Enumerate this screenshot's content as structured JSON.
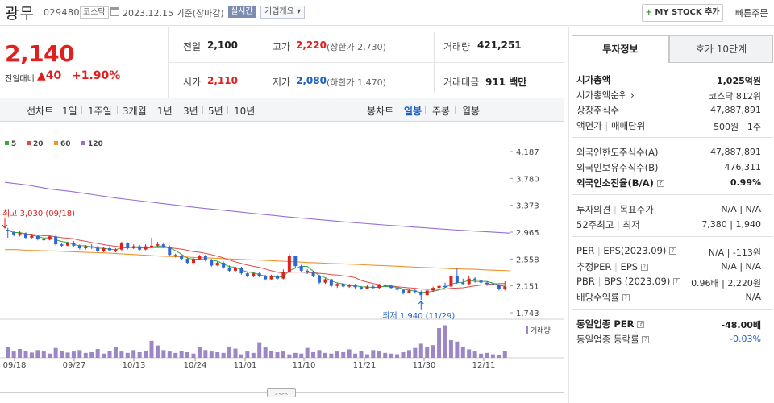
{
  "header": {
    "stock_name": "광무",
    "stock_code": "029480",
    "market": "코스닥",
    "date_info": "2023.12.15 기준(장마감)",
    "realtime_label": "실시간",
    "company_overview_label": "기업개요",
    "mystock_label": "MY STOCK 추가",
    "quick_order_label": "빠른주문"
  },
  "price": {
    "current": "2,140",
    "change_label": "전일대비",
    "change_value": "40",
    "change_pct": "+1.90%"
  },
  "quote": {
    "prev_close_label": "전일",
    "prev_close": "2,100",
    "high_label": "고가",
    "high": "2,220",
    "upper_limit": "(상한가 2,730)",
    "volume_label": "거래량",
    "volume": "421,251",
    "open_label": "시가",
    "open": "2,110",
    "low_label": "저가",
    "low": "2,080",
    "lower_limit": "(하한가 1,470)",
    "value_label": "거래대금",
    "value": "911 백만"
  },
  "period": {
    "line_chart_label": "선차트",
    "line_periods": [
      "1일",
      "1주일",
      "3개월",
      "1년",
      "3년",
      "5년",
      "10년"
    ],
    "candle_label": "봉차트",
    "candle_periods": [
      "일봉",
      "주봉",
      "월봉"
    ],
    "active_candle": "일봉"
  },
  "invest": {
    "tab_info": "투자정보",
    "tab_hoga": "호가 10단계",
    "market_cap_label": "시가총액",
    "market_cap": "1,025억원",
    "cap_rank_label": "시가총액순위",
    "cap_rank": "코스닥 812위",
    "shares_label": "상장주식수",
    "shares": "47,887,891",
    "par_label": "액면가",
    "unit_label": "매매단위",
    "par_unit": "500원 | 1주",
    "foreign_limit_label": "외국인한도주식수(A)",
    "foreign_limit": "47,887,891",
    "foreign_hold_label": "외국인보유주식수(B)",
    "foreign_hold": "476,311",
    "foreign_ratio_label": "외국인소진율(B/A)",
    "foreign_ratio": "0.99%",
    "opinion_label": "투자의견",
    "target_label": "목표주가",
    "opinion_target": "N/A | N/A",
    "w52_label": "52주최고",
    "w52_low_label": "최저",
    "w52": "7,380 | 1,940",
    "per_label": "PER",
    "eps_label": "EPS(2023.09)",
    "per_eps": "N/A | -113원",
    "est_per_label": "추정PER",
    "est_eps_label": "EPS",
    "est_per_eps": "N/A | N/A",
    "pbr_label": "PBR",
    "bps_label": "BPS (2023.09)",
    "pbr_bps": "0.96배 | 2,220원",
    "div_label": "배당수익률",
    "div": "N/A",
    "sector_per_label": "동일업종 PER",
    "sector_per": "-48.00배",
    "sector_rate_label": "동일업종 등락률",
    "sector_rate": "-0.03%"
  },
  "chart_data": {
    "type": "candlestick",
    "legend": [
      {
        "name": "5",
        "color": "#3aa63a"
      },
      {
        "name": "20",
        "color": "#e24a4a"
      },
      {
        "name": "60",
        "color": "#f0922e"
      },
      {
        "name": "120",
        "color": "#9b6fd1"
      }
    ],
    "y_ticks": [
      "4,187",
      "3,780",
      "3,373",
      "2,965",
      "2,558",
      "2,151",
      "1,743"
    ],
    "ylim": [
      1743,
      4187
    ],
    "x_ticks": [
      "09/18",
      "09/27",
      "10/13",
      "10/24",
      "11/01",
      "11/10",
      "11/21",
      "11/30",
      "12/11"
    ],
    "high_annotation": "최고 3,030 (09/18)",
    "low_annotation": "최저 1,940 (11/29)",
    "volume_label": "거래량",
    "candles": [
      [
        3000,
        2990,
        3030,
        2880
      ],
      [
        2960,
        2930,
        2990,
        2900
      ],
      [
        2930,
        2950,
        2980,
        2900
      ],
      [
        2950,
        2880,
        2960,
        2860
      ],
      [
        2880,
        2910,
        2940,
        2870
      ],
      [
        2910,
        2860,
        2920,
        2840
      ],
      [
        2860,
        2850,
        2880,
        2830
      ],
      [
        2850,
        2900,
        2910,
        2840
      ],
      [
        2900,
        2780,
        2920,
        2760
      ],
      [
        2780,
        2760,
        2800,
        2740
      ],
      [
        2760,
        2800,
        2820,
        2750
      ],
      [
        2800,
        2760,
        2830,
        2740
      ],
      [
        2760,
        2720,
        2780,
        2700
      ],
      [
        2720,
        2750,
        2770,
        2700
      ],
      [
        2750,
        2730,
        2780,
        2710
      ],
      [
        2730,
        2680,
        2760,
        2660
      ],
      [
        2680,
        2720,
        2740,
        2660
      ],
      [
        2720,
        2690,
        2750,
        2680
      ],
      [
        2690,
        2700,
        2720,
        2660
      ],
      [
        2700,
        2800,
        2820,
        2680
      ],
      [
        2800,
        2720,
        2810,
        2700
      ],
      [
        2720,
        2750,
        2780,
        2710
      ],
      [
        2750,
        2700,
        2770,
        2680
      ],
      [
        2700,
        2750,
        2780,
        2690
      ],
      [
        2750,
        2760,
        2880,
        2720
      ],
      [
        2760,
        2780,
        2820,
        2730
      ],
      [
        2780,
        2740,
        2810,
        2720
      ],
      [
        2740,
        2620,
        2760,
        2600
      ],
      [
        2620,
        2600,
        2640,
        2580
      ],
      [
        2600,
        2560,
        2620,
        2540
      ],
      [
        2560,
        2500,
        2580,
        2480
      ],
      [
        2500,
        2560,
        2580,
        2470
      ],
      [
        2560,
        2600,
        2620,
        2540
      ],
      [
        2600,
        2540,
        2620,
        2520
      ],
      [
        2540,
        2460,
        2560,
        2440
      ],
      [
        2460,
        2500,
        2520,
        2450
      ],
      [
        2500,
        2430,
        2520,
        2410
      ],
      [
        2430,
        2380,
        2460,
        2360
      ],
      [
        2380,
        2420,
        2440,
        2360
      ],
      [
        2420,
        2340,
        2440,
        2320
      ],
      [
        2340,
        2300,
        2360,
        2280
      ],
      [
        2300,
        2340,
        2360,
        2280
      ],
      [
        2340,
        2300,
        2360,
        2280
      ],
      [
        2300,
        2250,
        2320,
        2230
      ],
      [
        2250,
        2300,
        2320,
        2240
      ],
      [
        2300,
        2260,
        2320,
        2240
      ],
      [
        2260,
        2360,
        2400,
        2250
      ],
      [
        2360,
        2600,
        2640,
        2350
      ],
      [
        2600,
        2450,
        2610,
        2420
      ],
      [
        2450,
        2380,
        2470,
        2360
      ],
      [
        2380,
        2350,
        2400,
        2330
      ],
      [
        2350,
        2300,
        2380,
        2280
      ],
      [
        2300,
        2200,
        2320,
        2180
      ],
      [
        2200,
        2250,
        2270,
        2180
      ],
      [
        2250,
        2150,
        2260,
        2130
      ],
      [
        2150,
        2180,
        2200,
        2120
      ],
      [
        2180,
        2140,
        2200,
        2120
      ],
      [
        2140,
        2160,
        2180,
        2120
      ],
      [
        2160,
        2130,
        2180,
        2110
      ],
      [
        2130,
        2110,
        2150,
        2090
      ],
      [
        2110,
        2140,
        2160,
        2100
      ],
      [
        2140,
        2120,
        2160,
        2100
      ],
      [
        2120,
        2160,
        2180,
        2110
      ],
      [
        2160,
        2150,
        2180,
        2130
      ],
      [
        2150,
        2120,
        2170,
        2100
      ],
      [
        2120,
        2090,
        2140,
        2060
      ],
      [
        2090,
        2050,
        2110,
        2020
      ],
      [
        2050,
        2080,
        2100,
        2040
      ],
      [
        2080,
        2060,
        2100,
        2030
      ],
      [
        2060,
        2010,
        2080,
        1940
      ],
      [
        2010,
        2080,
        2100,
        2000
      ],
      [
        2080,
        2120,
        2140,
        2060
      ],
      [
        2120,
        2150,
        2180,
        2100
      ],
      [
        2150,
        2140,
        2200,
        2120
      ],
      [
        2140,
        2300,
        2320,
        2130
      ],
      [
        2300,
        2200,
        2420,
        2180
      ],
      [
        2200,
        2180,
        2260,
        2160
      ],
      [
        2180,
        2260,
        2300,
        2170
      ],
      [
        2260,
        2230,
        2280,
        2200
      ],
      [
        2230,
        2200,
        2260,
        2180
      ],
      [
        2200,
        2180,
        2220,
        2150
      ],
      [
        2180,
        2160,
        2200,
        2140
      ],
      [
        2160,
        2100,
        2180,
        2080
      ],
      [
        2110,
        2140,
        2220,
        2080
      ]
    ],
    "volume": [
      30,
      18,
      25,
      20,
      15,
      22,
      18,
      12,
      28,
      20,
      15,
      18,
      22,
      14,
      16,
      25,
      12,
      20,
      30,
      18,
      14,
      22,
      16,
      20,
      48,
      35,
      22,
      18,
      14,
      20,
      16,
      12,
      30,
      22,
      18,
      16,
      14,
      32,
      26,
      10,
      18,
      14,
      44,
      30,
      20,
      16,
      18,
      10,
      14,
      12,
      28,
      16,
      22,
      14,
      12,
      18,
      16,
      24,
      12,
      20,
      10,
      22,
      18,
      14,
      12,
      10,
      16,
      22,
      28,
      40,
      30,
      36,
      84,
      92,
      50,
      46,
      30,
      24,
      18,
      12,
      14,
      10,
      8,
      20
    ],
    "ma60": [
      2700,
      2700,
      2690,
      2685,
      2680,
      2675,
      2668,
      2660,
      2655,
      2650,
      2640,
      2630,
      2620,
      2610,
      2600,
      2595,
      2590,
      2580,
      2575,
      2568,
      2560,
      2552,
      2545,
      2540,
      2530,
      2522,
      2515,
      2505,
      2498,
      2490,
      2485,
      2478,
      2470,
      2462,
      2455,
      2448,
      2440,
      2432,
      2425,
      2418,
      2410,
      2405,
      2400,
      2392,
      2385,
      2380
    ],
    "ma120": [
      3720,
      3700,
      3680,
      3650,
      3620,
      3600,
      3580,
      3555,
      3530,
      3505,
      3480,
      3460,
      3440,
      3420,
      3400,
      3380,
      3360,
      3340,
      3322,
      3305,
      3288,
      3270,
      3252,
      3235,
      3218,
      3200,
      3185,
      3170,
      3155,
      3140,
      3125,
      3110,
      3098,
      3085,
      3072,
      3060,
      3048,
      3036,
      3024,
      3012,
      3000,
      2990,
      2980,
      2970,
      2960,
      2950
    ]
  }
}
